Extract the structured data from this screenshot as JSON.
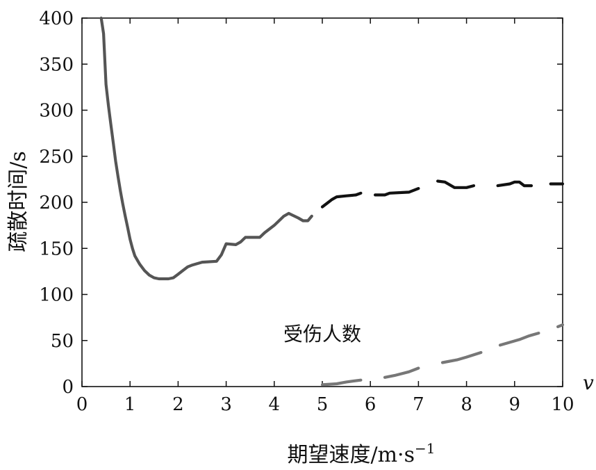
{
  "chart_data": {
    "type": "line",
    "xlabel": "期望速度/m·s",
    "xlabel_sup": "−1",
    "ylabel": "疏散时间/s",
    "x_axis_symbol": "v",
    "xlim": [
      0,
      10
    ],
    "ylim": [
      0,
      400
    ],
    "x_ticks": [
      0,
      1,
      2,
      3,
      4,
      5,
      6,
      7,
      8,
      9,
      10
    ],
    "y_ticks": [
      0,
      50,
      100,
      150,
      200,
      250,
      300,
      350,
      400
    ],
    "grid": false,
    "annotations": [
      {
        "text": "受伤人数",
        "x": 5.0,
        "y": 50
      }
    ],
    "series": [
      {
        "color": "#555555",
        "style": "solid",
        "segments": [
          [
            [
              0.4,
              400
            ],
            [
              0.45,
              383
            ],
            [
              0.48,
              350
            ],
            [
              0.5,
              328
            ],
            [
              0.55,
              305
            ],
            [
              0.6,
              285
            ],
            [
              0.65,
              265
            ],
            [
              0.7,
              245
            ],
            [
              0.75,
              228
            ],
            [
              0.8,
              212
            ],
            [
              0.85,
              198
            ],
            [
              0.9,
              185
            ],
            [
              0.95,
              173
            ],
            [
              1.0,
              160
            ],
            [
              1.05,
              150
            ],
            [
              1.1,
              142
            ],
            [
              1.2,
              133
            ],
            [
              1.3,
              126
            ],
            [
              1.4,
              121
            ],
            [
              1.5,
              118
            ],
            [
              1.6,
              117
            ],
            [
              1.7,
              117
            ],
            [
              1.8,
              117
            ],
            [
              1.9,
              118
            ],
            [
              2.0,
              122
            ],
            [
              2.1,
              126
            ],
            [
              2.2,
              130
            ],
            [
              2.3,
              132
            ],
            [
              2.5,
              135
            ],
            [
              2.8,
              136
            ],
            [
              2.9,
              143
            ],
            [
              3.0,
              155
            ],
            [
              3.2,
              154
            ],
            [
              3.3,
              157
            ],
            [
              3.4,
              162
            ],
            [
              3.7,
              162
            ],
            [
              3.8,
              167
            ],
            [
              4.0,
              175
            ],
            [
              4.1,
              180
            ],
            [
              4.2,
              185
            ],
            [
              4.3,
              188
            ],
            [
              4.5,
              183
            ],
            [
              4.6,
              180
            ],
            [
              4.7,
              180
            ],
            [
              4.78,
              185
            ]
          ]
        ]
      },
      {
        "color": "#111111",
        "style": "dashed",
        "segments": [
          [
            [
              5.0,
              195
            ],
            [
              5.1,
              199
            ],
            [
              5.2,
              203
            ],
            [
              5.3,
              206
            ],
            [
              5.5,
              207
            ],
            [
              5.7,
              208
            ],
            [
              5.8,
              210
            ]
          ],
          [
            [
              6.1,
              208
            ],
            [
              6.3,
              208
            ],
            [
              6.4,
              210
            ],
            [
              6.8,
              211
            ],
            [
              7.0,
              215
            ]
          ],
          [
            [
              7.4,
              223
            ],
            [
              7.55,
              222
            ],
            [
              7.65,
              219
            ],
            [
              7.75,
              216
            ],
            [
              8.0,
              216
            ],
            [
              8.15,
              218
            ]
          ],
          [
            [
              8.65,
              218
            ],
            [
              8.9,
              220
            ],
            [
              9.0,
              222
            ],
            [
              9.1,
              222
            ],
            [
              9.2,
              218
            ],
            [
              9.35,
              218
            ]
          ],
          [
            [
              9.75,
              220
            ],
            [
              10.0,
              220
            ]
          ]
        ]
      },
      {
        "color": "#777777",
        "style": "dashed",
        "segments": [
          [
            [
              5.0,
              2
            ],
            [
              5.3,
              3
            ],
            [
              5.5,
              5
            ],
            [
              5.8,
              7
            ]
          ],
          [
            [
              6.3,
              10
            ],
            [
              6.5,
              12
            ],
            [
              6.8,
              16
            ],
            [
              7.0,
              20
            ]
          ],
          [
            [
              7.5,
              26
            ],
            [
              7.8,
              29
            ],
            [
              8.0,
              32
            ],
            [
              8.3,
              37
            ]
          ],
          [
            [
              8.7,
              45
            ],
            [
              8.9,
              48
            ],
            [
              9.1,
              51
            ],
            [
              9.3,
              55
            ],
            [
              9.5,
              58
            ]
          ],
          [
            [
              9.9,
              65
            ],
            [
              10.0,
              67
            ]
          ]
        ]
      }
    ]
  }
}
